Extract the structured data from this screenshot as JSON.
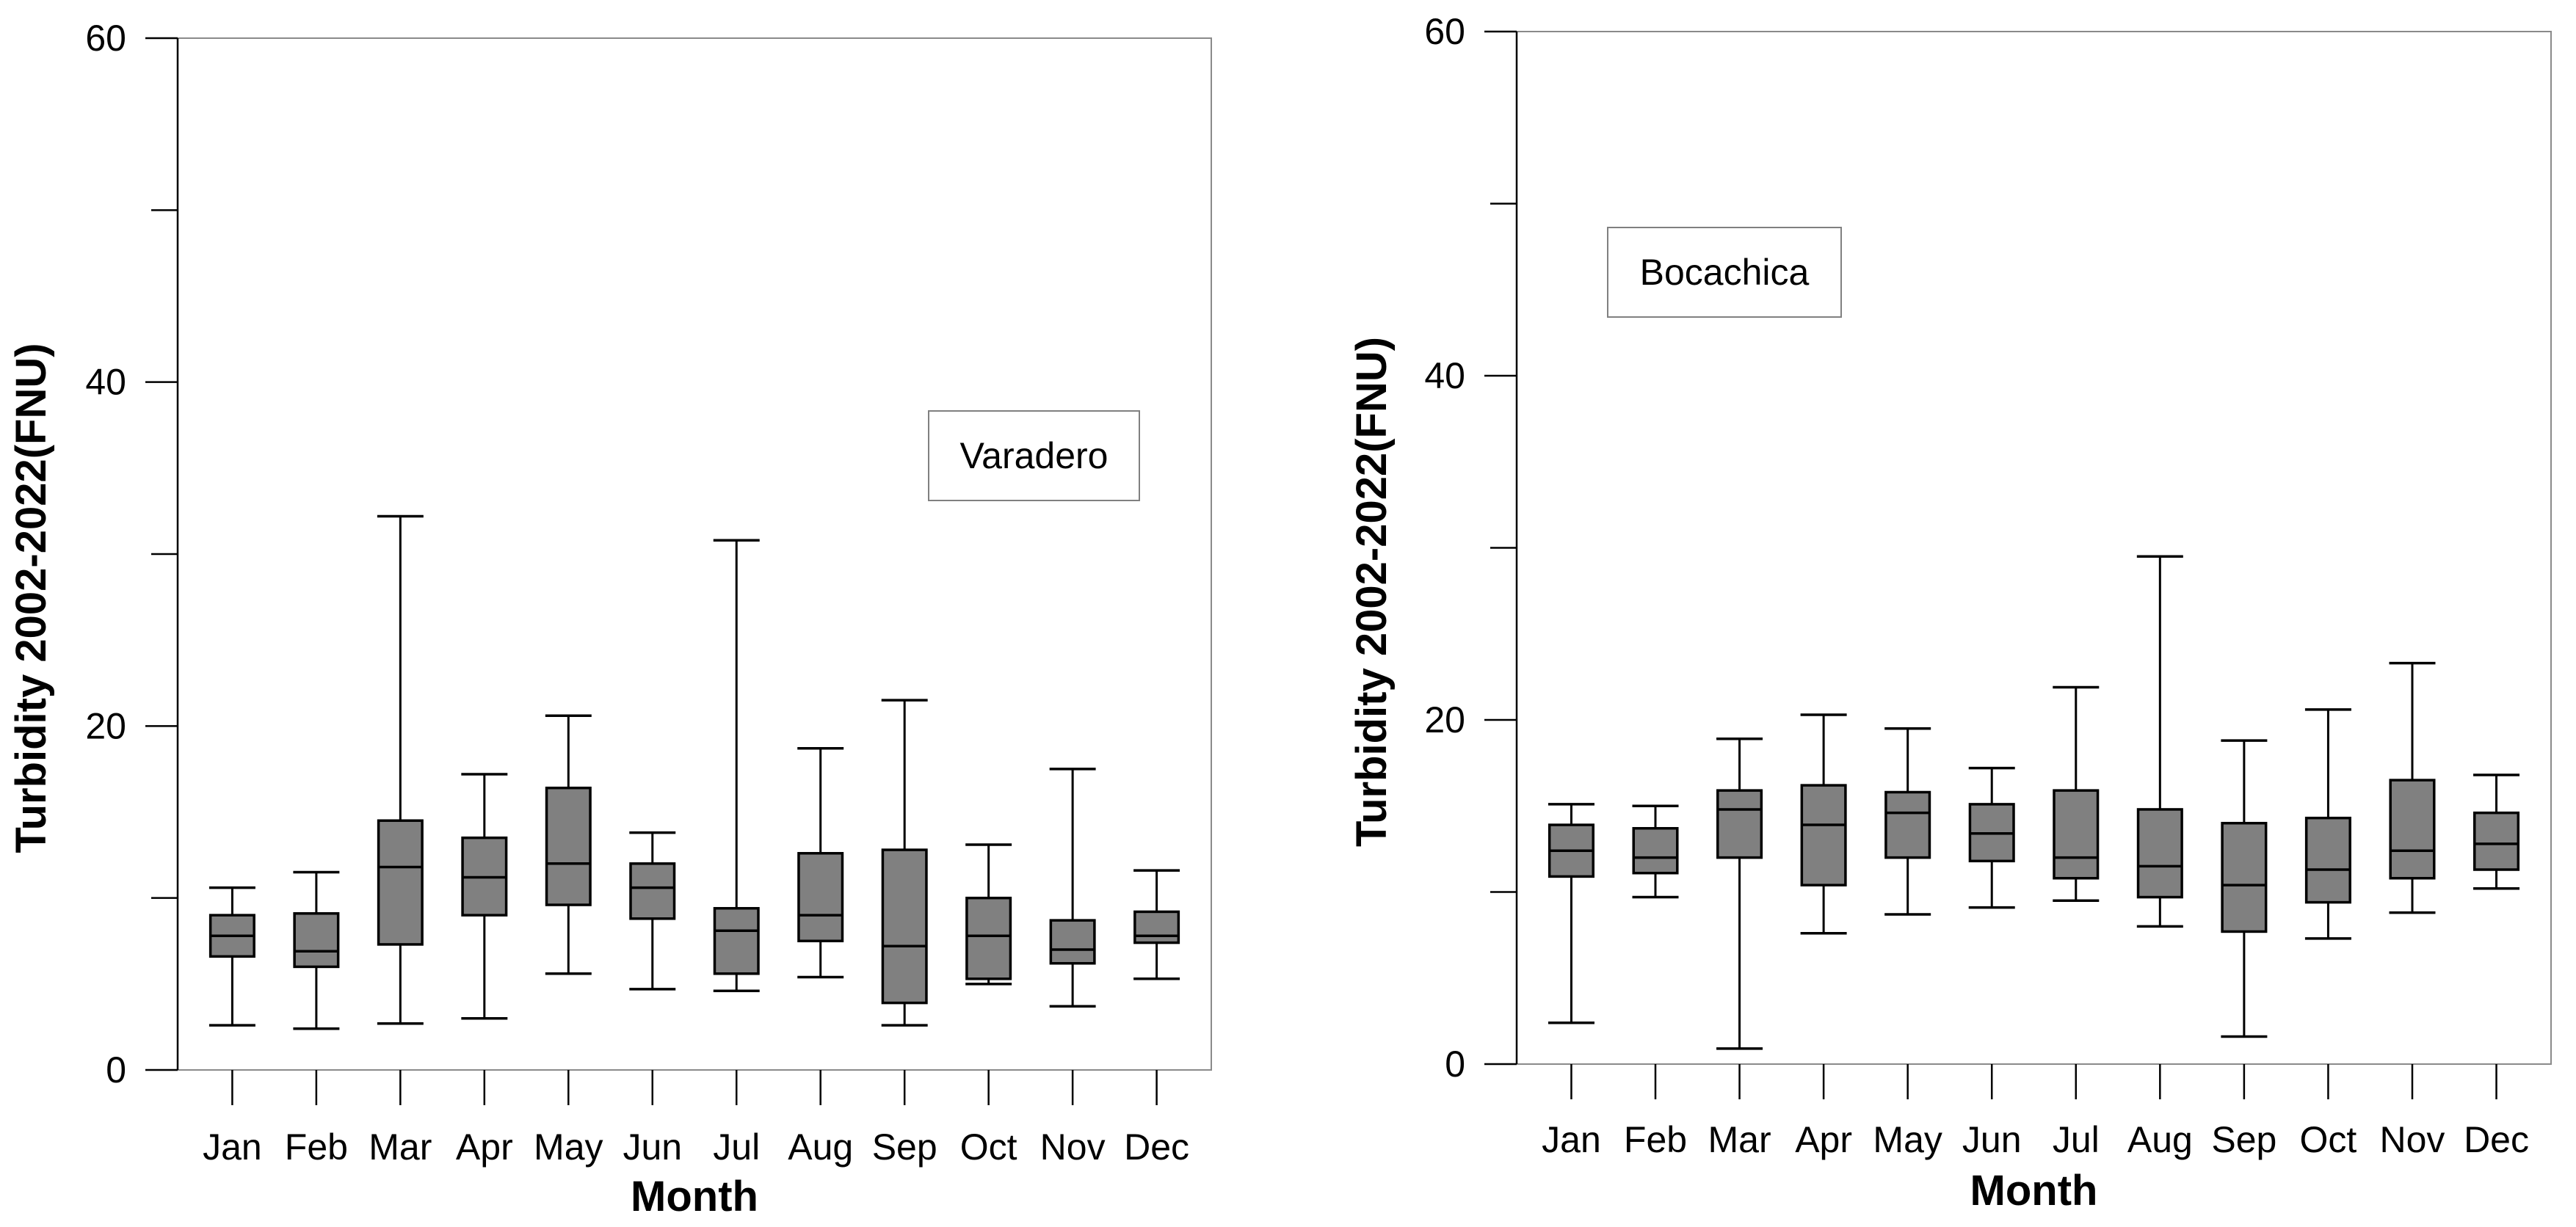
{
  "chart_data": [
    {
      "type": "boxplot",
      "title": "Varadero",
      "xlabel": "Month",
      "ylabel": "Turbidity 2002-2022(FNU)",
      "ylim": [
        0,
        60
      ],
      "yticks": [
        0,
        20,
        40,
        60
      ],
      "categories": [
        "Jan",
        "Feb",
        "Mar",
        "Apr",
        "May",
        "Jun",
        "Jul",
        "Aug",
        "Sep",
        "Oct",
        "Nov",
        "Dec"
      ],
      "boxes": [
        {
          "min": 2.6,
          "q1": 6.6,
          "median": 7.8,
          "q3": 9.0,
          "max": 10.6
        },
        {
          "min": 2.4,
          "q1": 6.0,
          "median": 6.9,
          "q3": 9.1,
          "max": 11.5
        },
        {
          "min": 2.7,
          "q1": 7.3,
          "median": 11.8,
          "q3": 14.5,
          "max": 32.2
        },
        {
          "min": 3.0,
          "q1": 9.0,
          "median": 11.2,
          "q3": 13.5,
          "max": 17.2
        },
        {
          "min": 5.6,
          "q1": 9.6,
          "median": 12.0,
          "q3": 16.4,
          "max": 20.6
        },
        {
          "min": 4.7,
          "q1": 8.8,
          "median": 10.6,
          "q3": 12.0,
          "max": 13.8
        },
        {
          "min": 4.6,
          "q1": 5.6,
          "median": 8.1,
          "q3": 9.4,
          "max": 30.8
        },
        {
          "min": 5.4,
          "q1": 7.5,
          "median": 9.0,
          "q3": 12.6,
          "max": 18.7
        },
        {
          "min": 2.6,
          "q1": 3.9,
          "median": 7.2,
          "q3": 12.8,
          "max": 21.5
        },
        {
          "min": 5.0,
          "q1": 5.3,
          "median": 7.8,
          "q3": 10.0,
          "max": 13.1
        },
        {
          "min": 3.7,
          "q1": 6.2,
          "median": 7.0,
          "q3": 8.7,
          "max": 17.5
        },
        {
          "min": 5.3,
          "q1": 7.4,
          "median": 7.8,
          "q3": 9.2,
          "max": 11.6
        }
      ]
    },
    {
      "type": "boxplot",
      "title": "Bocachica",
      "xlabel": "Month",
      "ylabel": "Turbidity 2002-2022(FNU)",
      "ylim": [
        0,
        60
      ],
      "yticks": [
        0,
        20,
        40,
        60
      ],
      "categories": [
        "Jan",
        "Feb",
        "Mar",
        "Apr",
        "May",
        "Jun",
        "Jul",
        "Aug",
        "Sep",
        "Oct",
        "Nov",
        "Dec"
      ],
      "boxes": [
        {
          "min": 2.4,
          "q1": 10.9,
          "median": 12.4,
          "q3": 13.9,
          "max": 15.1
        },
        {
          "min": 9.7,
          "q1": 11.1,
          "median": 12.0,
          "q3": 13.7,
          "max": 15.0
        },
        {
          "min": 0.9,
          "q1": 12.0,
          "median": 14.8,
          "q3": 15.9,
          "max": 18.9
        },
        {
          "min": 7.6,
          "q1": 10.4,
          "median": 13.9,
          "q3": 16.2,
          "max": 20.3
        },
        {
          "min": 8.7,
          "q1": 12.0,
          "median": 14.6,
          "q3": 15.8,
          "max": 19.5
        },
        {
          "min": 9.1,
          "q1": 11.8,
          "median": 13.4,
          "q3": 15.1,
          "max": 17.2
        },
        {
          "min": 9.5,
          "q1": 10.8,
          "median": 12.0,
          "q3": 15.9,
          "max": 21.9
        },
        {
          "min": 8.0,
          "q1": 9.7,
          "median": 11.5,
          "q3": 14.8,
          "max": 29.5
        },
        {
          "min": 1.6,
          "q1": 7.7,
          "median": 10.4,
          "q3": 14.0,
          "max": 18.8
        },
        {
          "min": 7.3,
          "q1": 9.4,
          "median": 11.3,
          "q3": 14.3,
          "max": 20.6
        },
        {
          "min": 8.8,
          "q1": 10.8,
          "median": 12.4,
          "q3": 16.5,
          "max": 23.3
        },
        {
          "min": 10.2,
          "q1": 11.3,
          "median": 12.8,
          "q3": 14.6,
          "max": 16.8
        }
      ]
    }
  ],
  "colors": {
    "box_fill": "#808080",
    "stroke": "#000000",
    "axis": "#000000",
    "legend_border": "#808080"
  }
}
